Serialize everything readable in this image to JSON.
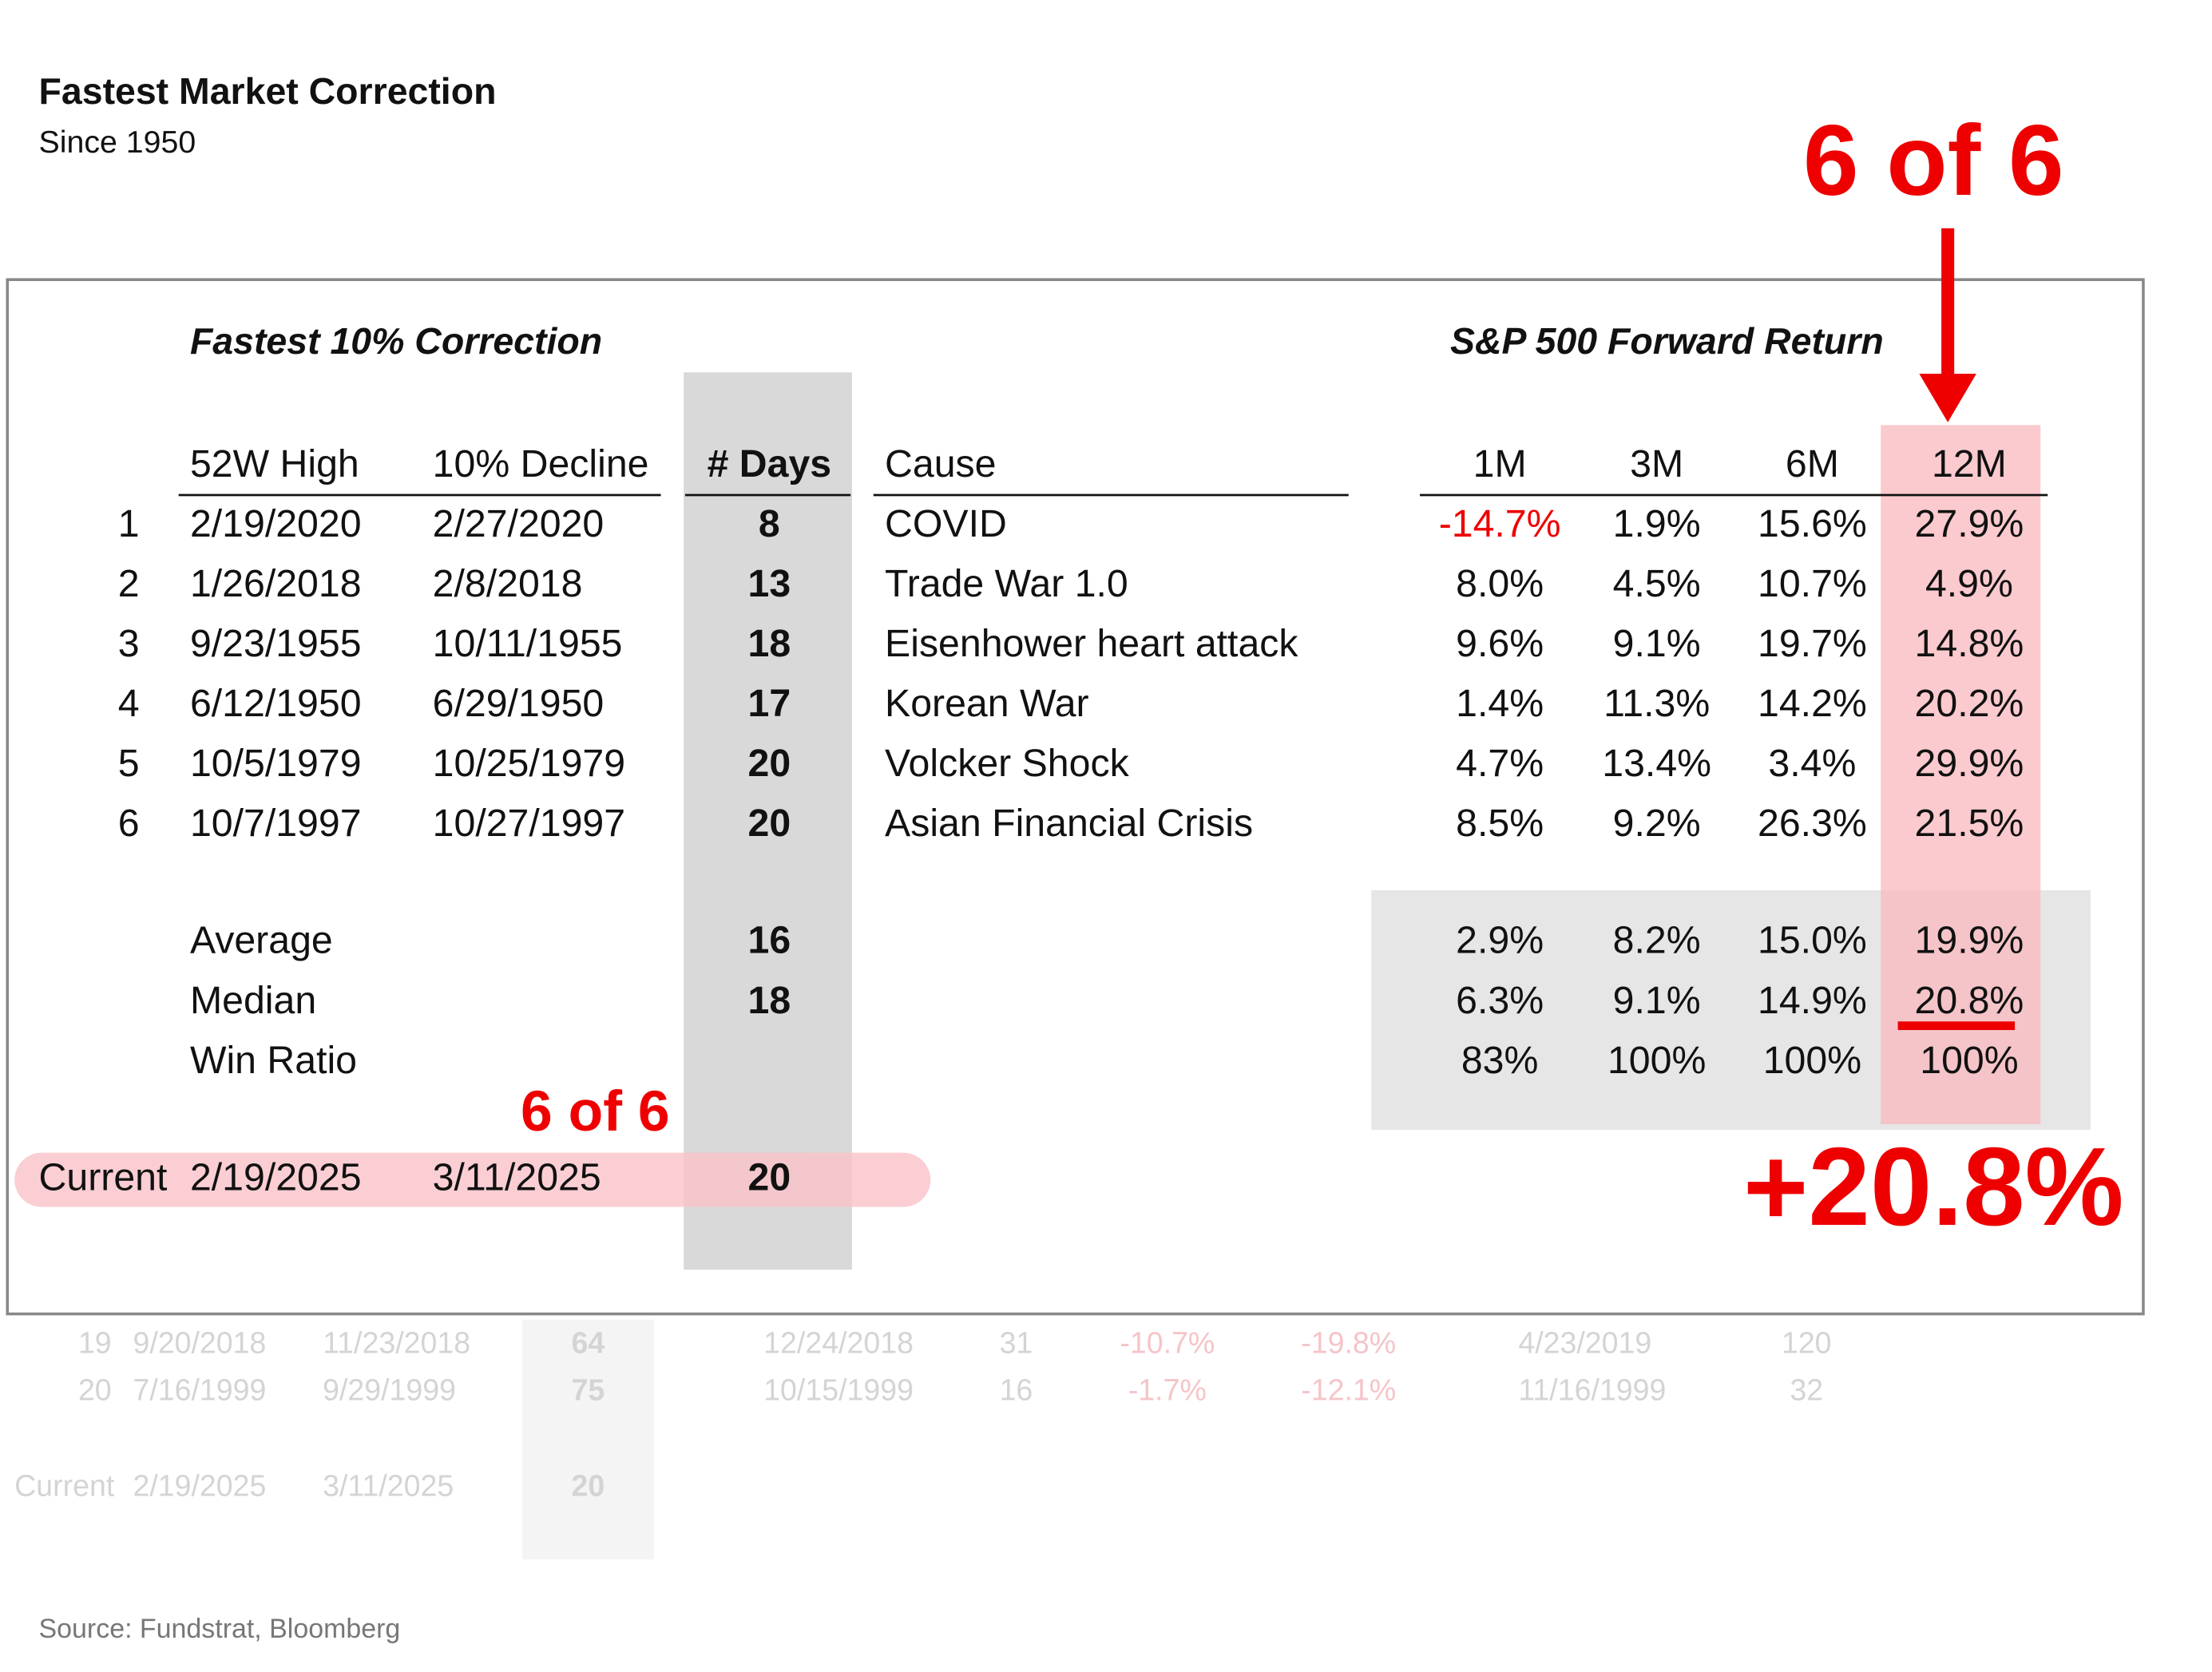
{
  "header": {
    "title": "Fastest Market Correction",
    "subtitle": "Since 1950"
  },
  "table": {
    "group_left": "Fastest 10% Correction",
    "group_right": "S&P 500 Forward Return",
    "columns": [
      "52W High",
      "10% Decline",
      "# Days",
      "Cause",
      "1M",
      "3M",
      "6M",
      "12M"
    ],
    "rows": [
      [
        "1",
        "2/19/2020",
        "2/27/2020",
        "8",
        "COVID",
        "-14.7%",
        "1.9%",
        "15.6%",
        "27.9%"
      ],
      [
        "2",
        "1/26/2018",
        "2/8/2018",
        "13",
        "Trade War 1.0",
        "8.0%",
        "4.5%",
        "10.7%",
        "4.9%"
      ],
      [
        "3",
        "9/23/1955",
        "10/11/1955",
        "18",
        "Eisenhower heart attack",
        "9.6%",
        "9.1%",
        "19.7%",
        "14.8%"
      ],
      [
        "4",
        "6/12/1950",
        "6/29/1950",
        "17",
        "Korean War",
        "1.4%",
        "11.3%",
        "14.2%",
        "20.2%"
      ],
      [
        "5",
        "10/5/1979",
        "10/25/1979",
        "20",
        "Volcker Shock",
        "4.7%",
        "13.4%",
        "3.4%",
        "29.9%"
      ],
      [
        "6",
        "10/7/1997",
        "10/27/1997",
        "20",
        "Asian Financial Crisis",
        "8.5%",
        "9.2%",
        "26.3%",
        "21.5%"
      ]
    ],
    "summary": [
      {
        "label": "Average",
        "days": "16",
        "returns": [
          "2.9%",
          "8.2%",
          "15.0%",
          "19.9%"
        ]
      },
      {
        "label": "Median",
        "days": "18",
        "returns": [
          "6.3%",
          "9.1%",
          "14.9%",
          "20.8%"
        ]
      },
      {
        "label": "Win Ratio",
        "returns": [
          "83%",
          "100%",
          "100%",
          "100%"
        ]
      }
    ],
    "current": [
      "Current",
      "2/19/2025",
      "3/11/2025",
      "20"
    ]
  },
  "annotations": {
    "top": "6 of 6",
    "middle": "6 of 6",
    "result": "+20.8%"
  },
  "background_rows": [
    [
      "19",
      "9/20/2018",
      "11/23/2018",
      "64",
      "12/24/2018",
      "31",
      "-10.7%",
      "-19.8%",
      "4/23/2019",
      "120"
    ],
    [
      "20",
      "7/16/1999",
      "9/29/1999",
      "75",
      "10/15/1999",
      "16",
      "-1.7%",
      "-12.1%",
      "11/16/1999",
      "32"
    ],
    [
      "Current",
      "2/19/2025",
      "3/11/2025",
      "20"
    ]
  ],
  "source": "Source: Fundstrat, Bloomberg"
}
